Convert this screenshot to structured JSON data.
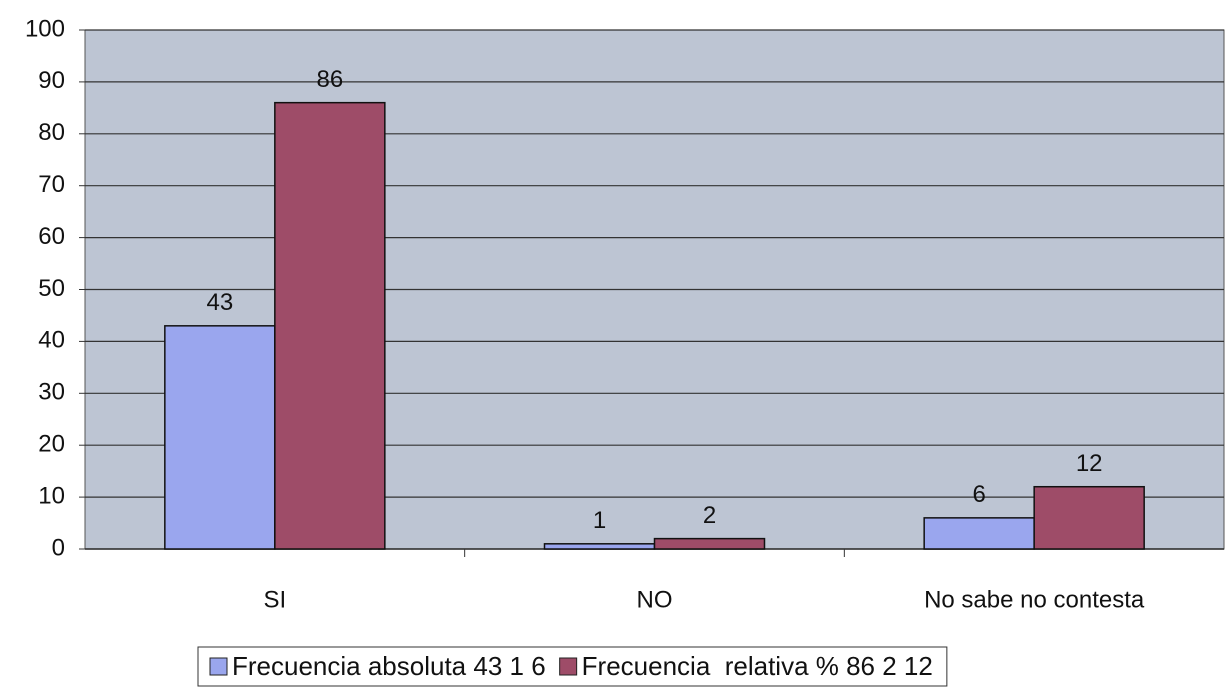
{
  "chart_data": {
    "type": "bar",
    "categories": [
      "SI",
      "NO",
      "No sabe no contesta"
    ],
    "series": [
      {
        "name": "Frecuencia absoluta 43 1 6",
        "color": "#9aa6ee",
        "values": [
          43,
          1,
          6
        ]
      },
      {
        "name": "Frecuencia  relativa % 86 2 12",
        "color": "#9e4c68",
        "values": [
          86,
          2,
          12
        ]
      }
    ],
    "ylim": [
      0,
      100
    ],
    "yticks": [
      0,
      10,
      20,
      30,
      40,
      50,
      60,
      70,
      80,
      90,
      100
    ],
    "grid": true,
    "legend": "bottom"
  }
}
